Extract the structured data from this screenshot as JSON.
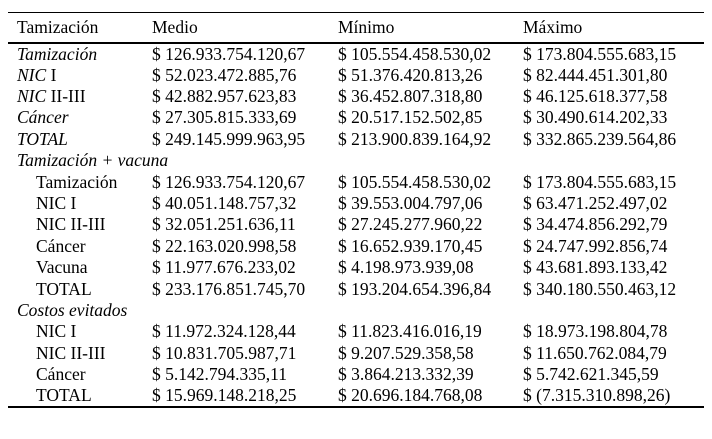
{
  "table": {
    "headers": {
      "col1": "Tamización",
      "col2": "Medio",
      "col3": "Mínimo",
      "col4": "Máximo"
    },
    "rows": [
      {
        "label_em": "Tamización",
        "label_plain": "",
        "medio": "$ 126.933.754.120,67",
        "minimo": "$ 105.554.458.530,02",
        "maximo": "$ 173.804.555.683,15"
      },
      {
        "label_em": "NIC",
        "label_plain": " I",
        "medio": "$ 52.023.472.885,76",
        "minimo": "$ 51.376.420.813,26",
        "maximo": "$ 82.444.451.301,80"
      },
      {
        "label_em": "NIC",
        "label_plain": " II-III",
        "medio": "$ 42.882.957.623,83",
        "minimo": "$ 36.452.807.318,80",
        "maximo": "$ 46.125.618.377,58"
      },
      {
        "label_em": "Cáncer",
        "label_plain": "",
        "medio": "$ 27.305.815.333,69",
        "minimo": "$ 20.517.152.502,85",
        "maximo": "$ 30.490.614.202,33"
      },
      {
        "label_em": "TOTAL",
        "label_plain": "",
        "medio": "$ 249.145.999.963,95",
        "minimo": "$ 213.900.839.164,92",
        "maximo": "$ 332.865.239.564,86"
      },
      {
        "label_em": "Tamización + vacuna",
        "label_plain": ""
      },
      {
        "label_em": "",
        "label_plain": "Tamización",
        "medio": "$ 126.933.754.120,67",
        "minimo": "$ 105.554.458.530,02",
        "maximo": "$ 173.804.555.683,15"
      },
      {
        "label_em": "",
        "label_plain": "NIC I",
        "medio": "$ 40.051.148.757,32",
        "minimo": "$ 39.553.004.797,06",
        "maximo": "$ 63.471.252.497,02"
      },
      {
        "label_em": "",
        "label_plain": "NIC II-III",
        "medio": "$ 32.051.251.636,11",
        "minimo": "$ 27.245.277.960,22",
        "maximo": "$ 34.474.856.292,79"
      },
      {
        "label_em": "",
        "label_plain": "Cáncer",
        "medio": "$ 22.163.020.998,58",
        "minimo": "$ 16.652.939.170,45",
        "maximo": "$ 24.747.992.856,74"
      },
      {
        "label_em": "",
        "label_plain": "Vacuna",
        "medio": "$ 11.977.676.233,02",
        "minimo": "$ 4.198.973.939,08",
        "maximo": "$ 43.681.893.133,42"
      },
      {
        "label_em": "",
        "label_plain": "TOTAL",
        "medio": "$ 233.176.851.745,70",
        "minimo": "$ 193.204.654.396,84",
        "maximo": "$ 340.180.550.463,12"
      },
      {
        "label_em": "Costos evitados",
        "label_plain": ""
      },
      {
        "label_em": "",
        "label_plain": "NIC I",
        "medio": "$ 11.972.324.128,44",
        "minimo": "$ 11.823.416.016,19",
        "maximo": "$ 18.973.198.804,78"
      },
      {
        "label_em": "",
        "label_plain": "NIC II-III",
        "medio": "$ 10.831.705.987,71",
        "minimo": "$ 9.207.529.358,58",
        "maximo": "$ 11.650.762.084,79"
      },
      {
        "label_em": "",
        "label_plain": "Cáncer",
        "medio": "$ 5.142.794.335,11",
        "minimo": "$ 3.864.213.332,39",
        "maximo": "$ 5.742.621.345,59"
      },
      {
        "label_em": "",
        "label_plain": "TOTAL",
        "medio": "$ 15.969.148.218,25",
        "minimo": "$ 20.696.184.768,08",
        "maximo": "$ (7.315.310.898,26)"
      }
    ]
  }
}
